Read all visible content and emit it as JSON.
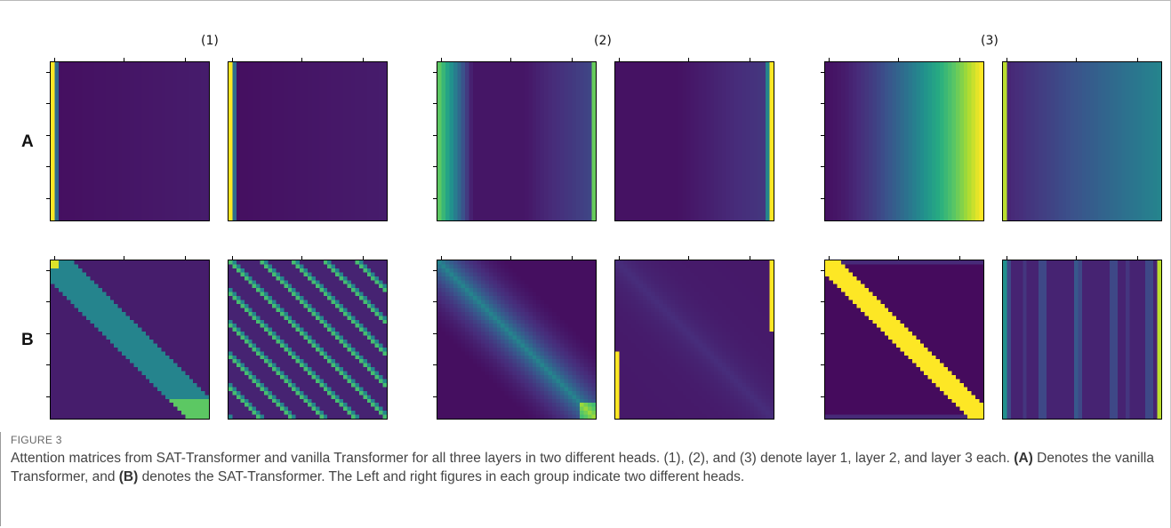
{
  "figure": {
    "column_labels": [
      "(1)",
      "(2)",
      "(3)"
    ],
    "row_labels": [
      "A",
      "B"
    ],
    "panels": [
      {
        "id": "A1-left",
        "pattern": "first-column"
      },
      {
        "id": "A1-right",
        "pattern": "first-column"
      },
      {
        "id": "A2-left",
        "pattern": "edge-columns"
      },
      {
        "id": "A2-right",
        "pattern": "right-column"
      },
      {
        "id": "A3-left",
        "pattern": "rising-columns"
      },
      {
        "id": "A3-right",
        "pattern": "flat-columns"
      },
      {
        "id": "B1-left",
        "pattern": "band-diagonal"
      },
      {
        "id": "B1-right",
        "pattern": "periodic-diagonals"
      },
      {
        "id": "B2-left",
        "pattern": "soft-diagonal"
      },
      {
        "id": "B2-right",
        "pattern": "corner-columns"
      },
      {
        "id": "B3-left",
        "pattern": "sharp-diagonal"
      },
      {
        "id": "B3-right",
        "pattern": "striped-columns"
      }
    ]
  },
  "caption": {
    "label": "FIGURE 3",
    "text_1": "Attention matrices from SAT-Transformer and vanilla Transformer for all three layers in two different heads. (1), (2), and (3) denote layer 1, layer 2, and layer 3 each.",
    "bold_a": "(A)",
    "text_2": "Denotes the vanilla Transformer, and",
    "bold_b": "(B)",
    "text_3": "denotes the SAT-Transformer. The Left and right figures in each group indicate two different heads."
  }
}
